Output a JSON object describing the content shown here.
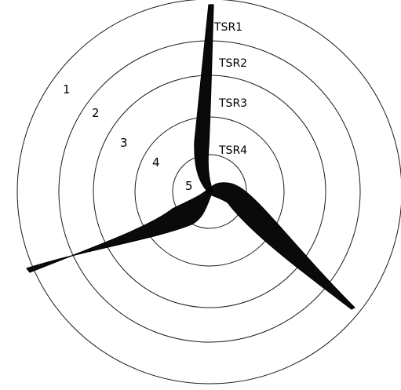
{
  "zone_labels": [
    "1",
    "2",
    "3",
    "4",
    "5"
  ],
  "tsr_labels": [
    "TSR1",
    "TSR2",
    "TSR3",
    "TSR4"
  ],
  "colors": {
    "background": "#ffffff",
    "ring_stroke": "#1a1a1a",
    "blade_fill": "#0a0a0a"
  }
}
